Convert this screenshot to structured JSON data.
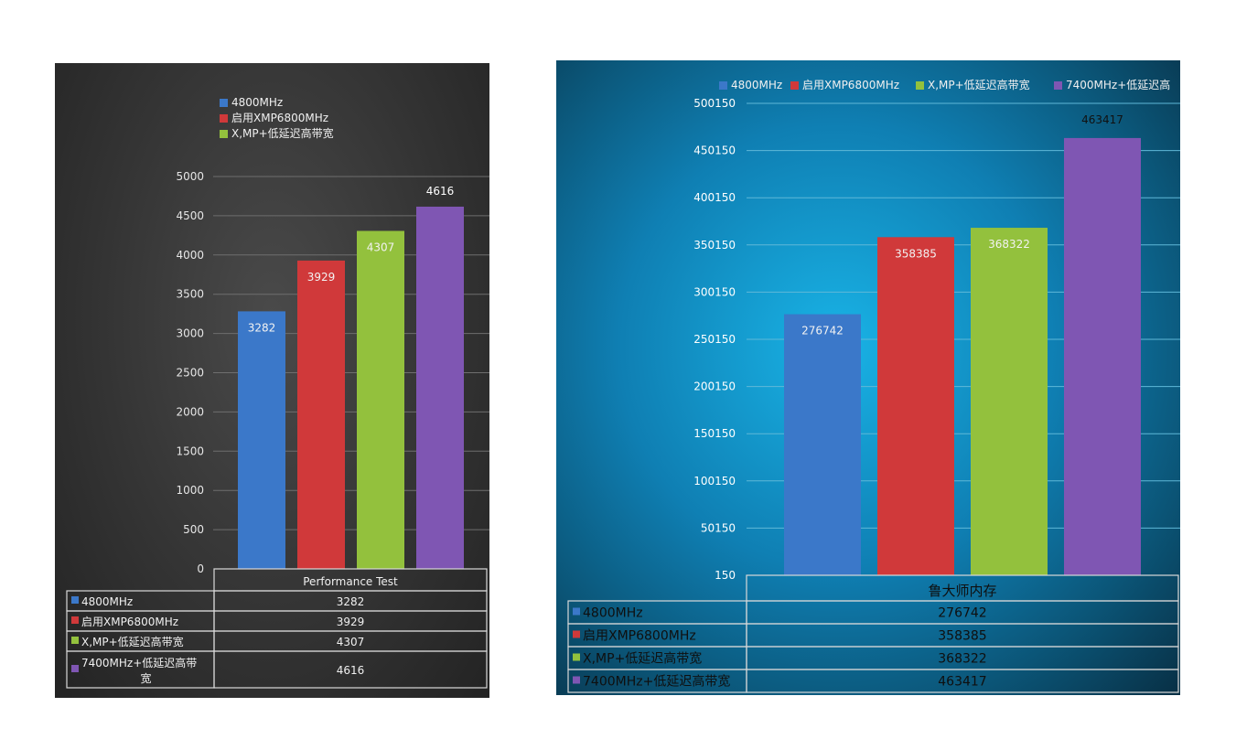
{
  "colors": {
    "blue": "#3b78c9",
    "red": "#d0393a",
    "green": "#93c13d",
    "purple": "#7f56b3",
    "grid_left": "#6e6e6e",
    "grid_right": "#5fb8d8",
    "table_border": "#d9d9d9"
  },
  "chart_data": [
    {
      "type": "bar",
      "categories": [
        "Performance Test"
      ],
      "series": [
        {
          "name": "4800MHz",
          "values": [
            3282
          ]
        },
        {
          "name": "启用XMP6800MHz",
          "values": [
            3929
          ]
        },
        {
          "name": "X,MP+低延迟高带宽",
          "values": [
            4307
          ]
        },
        {
          "name": "7400MHz+低延迟高带宽",
          "values": [
            4616
          ]
        }
      ],
      "ylim": [
        0,
        5000
      ],
      "yticks": [
        "0",
        "500",
        "1000",
        "1500",
        "2000",
        "2500",
        "3000",
        "3500",
        "4000",
        "4500",
        "5000"
      ],
      "legend_position": "top",
      "legend_entries": [
        "4800MHz",
        "启用XMP6800MHz",
        "X,MP+低延迟高带宽"
      ],
      "grid": true,
      "data_table": true,
      "table_header": "Performance Test",
      "table_last_label": [
        "7400MHz+低延迟高带",
        "宽"
      ]
    },
    {
      "type": "bar",
      "categories": [
        "鲁大师内存"
      ],
      "series": [
        {
          "name": "4800MHz",
          "values": [
            276742
          ]
        },
        {
          "name": "启用XMP6800MHz",
          "values": [
            358385
          ]
        },
        {
          "name": "X,MP+低延迟高带宽",
          "values": [
            368322
          ]
        },
        {
          "name": "7400MHz+低延迟高带宽",
          "values": [
            463417
          ]
        }
      ],
      "ylim": [
        150,
        500150
      ],
      "yticks": [
        "150",
        "50150",
        "100150",
        "150150",
        "200150",
        "250150",
        "300150",
        "350150",
        "400150",
        "450150",
        "500150"
      ],
      "legend_position": "top",
      "legend_entries": [
        "4800MHz",
        "启用XMP6800MHz",
        "X,MP+低延迟高带宽",
        "7400MHz+低延迟高"
      ],
      "grid": true,
      "data_table": true,
      "table_header": "鲁大师内存"
    }
  ]
}
